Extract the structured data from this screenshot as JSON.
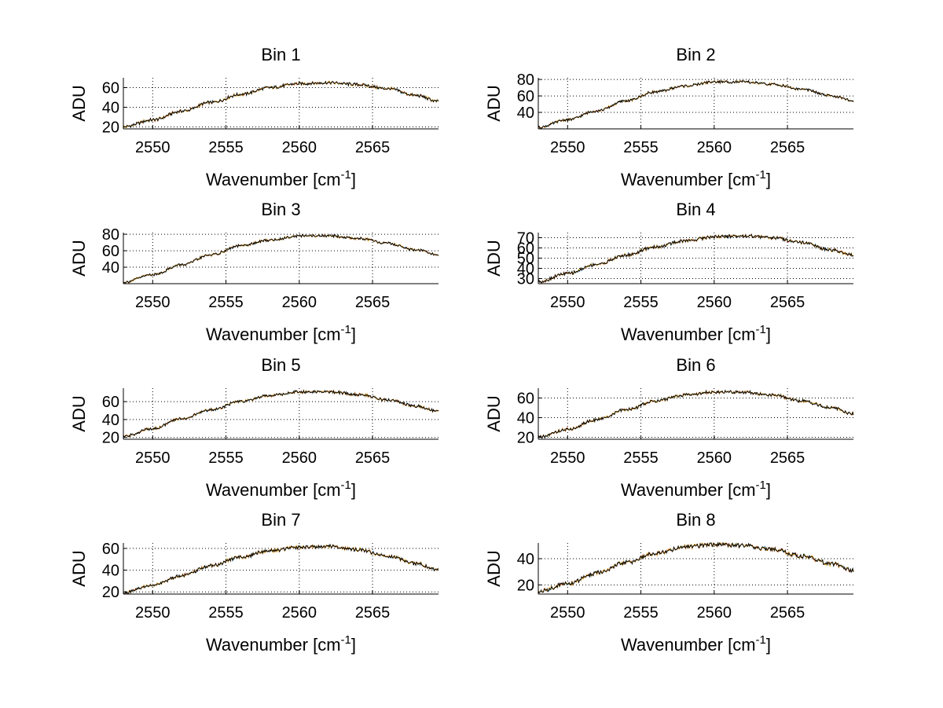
{
  "figure": {
    "colors": {
      "background": "#ffffff",
      "axes": "#000000",
      "grid": "#000000",
      "series": [
        "#0072bd",
        "#d95319",
        "#edb120",
        "#000000"
      ]
    },
    "xlabel_main": "Wavenumber [cm",
    "xlabel_sup": "-1",
    "xlabel_close": "]"
  },
  "chart_data": [
    {
      "type": "line",
      "title": "Bin 1",
      "xlabel": "Wavenumber [cm-1]",
      "ylabel": "ADU",
      "xlim": [
        2548,
        2569.5
      ],
      "ylim": [
        18,
        70
      ],
      "xticks": [
        "2550",
        "2555",
        "2560",
        "2565"
      ],
      "yticks": [
        "20",
        "40",
        "60"
      ],
      "grid": true,
      "x": [
        2548,
        2550,
        2552,
        2554,
        2556,
        2558,
        2560,
        2562,
        2564,
        2566,
        2568,
        2569.5
      ],
      "y": [
        20,
        27,
        36,
        45,
        53,
        60,
        64,
        65,
        63,
        59,
        52,
        46
      ]
    },
    {
      "type": "line",
      "title": "Bin 2",
      "xlabel": "Wavenumber [cm-1]",
      "ylabel": "ADU",
      "xlim": [
        2548,
        2569.5
      ],
      "ylim": [
        20,
        82
      ],
      "xticks": [
        "2550",
        "2555",
        "2560",
        "2565"
      ],
      "yticks": [
        "40",
        "60",
        "80"
      ],
      "grid": true,
      "x": [
        2548,
        2550,
        2552,
        2554,
        2556,
        2558,
        2560,
        2562,
        2564,
        2566,
        2568,
        2569.5
      ],
      "y": [
        22,
        31,
        42,
        54,
        65,
        72,
        77,
        77,
        74,
        68,
        60,
        54
      ]
    },
    {
      "type": "line",
      "title": "Bin 3",
      "xlabel": "Wavenumber [cm-1]",
      "ylabel": "ADU",
      "xlim": [
        2548,
        2569.5
      ],
      "ylim": [
        20,
        82
      ],
      "xticks": [
        "2550",
        "2555",
        "2560",
        "2565"
      ],
      "yticks": [
        "40",
        "60",
        "80"
      ],
      "grid": true,
      "x": [
        2548,
        2550,
        2552,
        2554,
        2556,
        2558,
        2560,
        2562,
        2564,
        2566,
        2568,
        2569.5
      ],
      "y": [
        22,
        31,
        43,
        55,
        66,
        73,
        78,
        78,
        75,
        69,
        61,
        55
      ]
    },
    {
      "type": "line",
      "title": "Bin 4",
      "xlabel": "Wavenumber [cm-1]",
      "ylabel": "ADU",
      "xlim": [
        2548,
        2569.5
      ],
      "ylim": [
        25,
        75
      ],
      "xticks": [
        "2550",
        "2555",
        "2560",
        "2565"
      ],
      "yticks": [
        "30",
        "40",
        "50",
        "60",
        "70"
      ],
      "grid": true,
      "x": [
        2548,
        2550,
        2552,
        2554,
        2556,
        2558,
        2560,
        2562,
        2564,
        2566,
        2568,
        2569.5
      ],
      "y": [
        27,
        35,
        44,
        53,
        61,
        67,
        71,
        72,
        70,
        65,
        58,
        53
      ]
    },
    {
      "type": "line",
      "title": "Bin 5",
      "xlabel": "Wavenumber [cm-1]",
      "ylabel": "ADU",
      "xlim": [
        2548,
        2569.5
      ],
      "ylim": [
        18,
        75
      ],
      "xticks": [
        "2550",
        "2555",
        "2560",
        "2565"
      ],
      "yticks": [
        "20",
        "40",
        "60"
      ],
      "grid": true,
      "x": [
        2548,
        2550,
        2552,
        2554,
        2556,
        2558,
        2560,
        2562,
        2564,
        2566,
        2568,
        2569.5
      ],
      "y": [
        21,
        30,
        41,
        51,
        60,
        67,
        71,
        71,
        68,
        62,
        55,
        49
      ]
    },
    {
      "type": "line",
      "title": "Bin 6",
      "xlabel": "Wavenumber [cm-1]",
      "ylabel": "ADU",
      "xlim": [
        2548,
        2569.5
      ],
      "ylim": [
        18,
        70
      ],
      "xticks": [
        "2550",
        "2555",
        "2560",
        "2565"
      ],
      "yticks": [
        "20",
        "40",
        "60"
      ],
      "grid": true,
      "x": [
        2548,
        2550,
        2552,
        2554,
        2556,
        2558,
        2560,
        2562,
        2564,
        2566,
        2568,
        2569.5
      ],
      "y": [
        20,
        28,
        38,
        48,
        57,
        63,
        66,
        66,
        63,
        57,
        50,
        44
      ]
    },
    {
      "type": "line",
      "title": "Bin 7",
      "xlabel": "Wavenumber [cm-1]",
      "ylabel": "ADU",
      "xlim": [
        2548,
        2569.5
      ],
      "ylim": [
        18,
        65
      ],
      "xticks": [
        "2550",
        "2555",
        "2560",
        "2565"
      ],
      "yticks": [
        "20",
        "40",
        "60"
      ],
      "grid": true,
      "x": [
        2548,
        2550,
        2552,
        2554,
        2556,
        2558,
        2560,
        2562,
        2564,
        2566,
        2568,
        2569.5
      ],
      "y": [
        19,
        26,
        35,
        44,
        52,
        58,
        61,
        62,
        59,
        53,
        46,
        40
      ]
    },
    {
      "type": "line",
      "title": "Bin 8",
      "xlabel": "Wavenumber [cm-1]",
      "ylabel": "ADU",
      "xlim": [
        2548,
        2569.5
      ],
      "ylim": [
        13,
        52
      ],
      "xticks": [
        "2550",
        "2555",
        "2560",
        "2565"
      ],
      "yticks": [
        "20",
        "40"
      ],
      "grid": true,
      "x": [
        2548,
        2550,
        2552,
        2554,
        2556,
        2558,
        2560,
        2562,
        2564,
        2566,
        2568,
        2569.5
      ],
      "y": [
        15,
        21,
        29,
        37,
        44,
        49,
        51,
        50,
        47,
        42,
        36,
        31
      ]
    }
  ]
}
